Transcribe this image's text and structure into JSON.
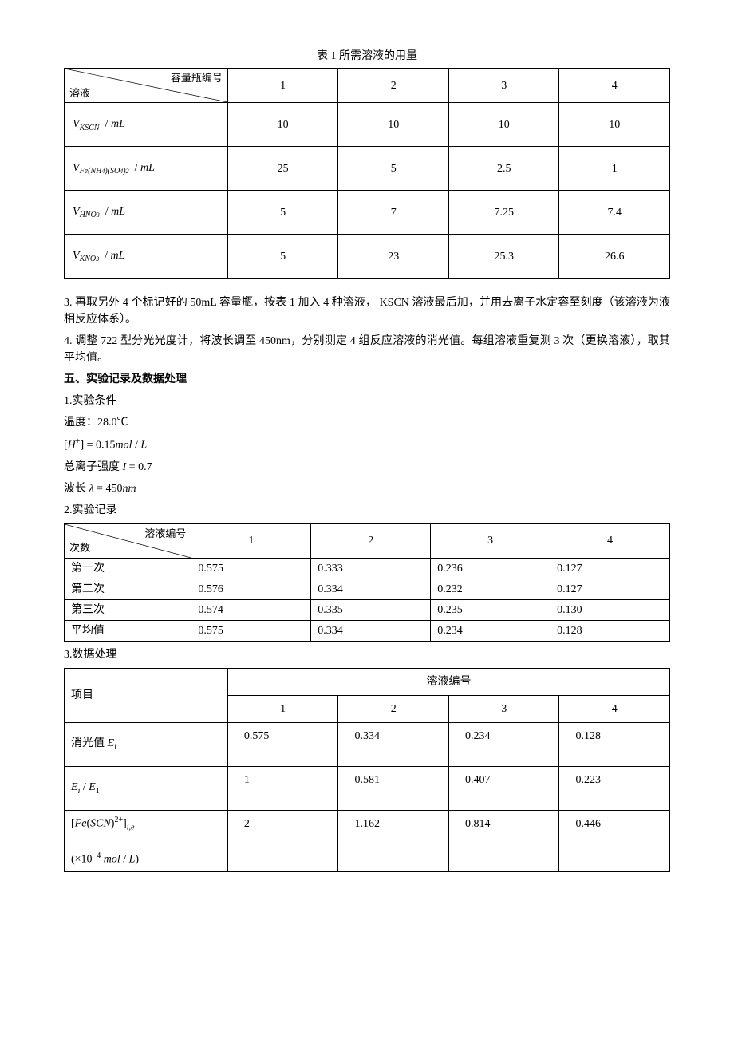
{
  "table1": {
    "title": "表 1 所需溶液的用量",
    "diag_top": "容量瓶编号",
    "diag_bottom": "溶液",
    "cols": [
      "1",
      "2",
      "3",
      "4"
    ],
    "rows": [
      {
        "label_html": "<span class='ital'>V</span><span class='sub ital'>KSCN</span>&nbsp;&nbsp;/ <span class='ital'>mL</span>",
        "vals": [
          "10",
          "10",
          "10",
          "10"
        ]
      },
      {
        "label_html": "<span class='ital'>V</span><span class='sub ital'>Fe(NH<span style='font-size:8px'>4</span>)(SO<span style='font-size:8px'>4</span>)<span style='font-size:8px'>2</span></span>&nbsp;&nbsp;/ <span class='ital'>mL</span>",
        "vals": [
          "25",
          "5",
          "2.5",
          "1"
        ]
      },
      {
        "label_html": "<span class='ital'>V</span><span class='sub ital'>HNO<span style='font-size:8px'>3</span></span>&nbsp;&nbsp;/ <span class='ital'>mL</span>",
        "vals": [
          "5",
          "7",
          "7.25",
          "7.4"
        ]
      },
      {
        "label_html": "<span class='ital'>V</span><span class='sub ital'>KNO<span style='font-size:8px'>3</span></span>&nbsp;&nbsp;/ <span class='ital'>mL</span>",
        "vals": [
          "5",
          "23",
          "25.3",
          "26.6"
        ]
      }
    ]
  },
  "para3": "3. 再取另外 4 个标记好的 50mL 容量瓶，按表 1 加入 4 种溶液， KSCN 溶液最后加，并用去离子水定容至刻度（该溶液为液相反应体系）。",
  "para4": "4. 调整 722 型分光光度计，将波长调至 450nm，分别测定 4 组反应溶液的消光值。每组溶液重复测 3 次（更换溶液），取其平均值。",
  "section5_heading": "五、实验记录及数据处理",
  "cond_heading": "1.实验条件",
  "cond_temp": "温度：28.0℃",
  "cond_H_html": "[<span class='ital'>H</span><span class='sup'>+</span>] = 0.15<span class='ital'>mol</span> / <span class='ital'>L</span>",
  "cond_I_html": "总离子强度 <span class='ital'>I</span> = 0.7",
  "cond_lambda_html": "波长 <span class='ital'>λ</span> = 450<span class='ital'>nm</span>",
  "record_heading": "2.实验记录",
  "table2": {
    "diag_top": "溶液编号",
    "diag_bottom": "次数",
    "cols": [
      "1",
      "2",
      "3",
      "4"
    ],
    "rows": [
      {
        "label": "第一次",
        "vals": [
          "0.575",
          "0.333",
          "0.236",
          "0.127"
        ]
      },
      {
        "label": "第二次",
        "vals": [
          "0.576",
          "0.334",
          "0.232",
          "0.127"
        ]
      },
      {
        "label": "第三次",
        "vals": [
          "0.574",
          "0.335",
          "0.235",
          "0.130"
        ]
      },
      {
        "label": "平均值",
        "vals": [
          "0.575",
          "0.334",
          "0.234",
          "0.128"
        ]
      }
    ]
  },
  "data_heading": "3.数据处理",
  "table3": {
    "item_label": "项目",
    "group_label": "溶液编号",
    "cols": [
      "1",
      "2",
      "3",
      "4"
    ],
    "rows": [
      {
        "label_html": "消光值 <span class='ital'>E<span class='sub'>i</span></span>",
        "vals": [
          "0.575",
          "0.334",
          "0.234",
          "0.128"
        ]
      },
      {
        "label_html": "<span class='ital'>E<span class='sub'>i</span></span> / <span class='ital'>E</span><span class='sub'>1</span>",
        "vals": [
          "1",
          "0.581",
          "0.407",
          "0.223"
        ]
      },
      {
        "label_html": "[<span class='ital'>Fe</span>(<span class='ital'>SCN</span>)<span class='sup'>2+</span>]<span class='sub ital'>i,e</span><br><br>(×10<span class='sup'>−4</span> <span class='ital'>mol</span> / <span class='ital'>L</span>)",
        "vals": [
          "2",
          "1.162",
          "0.814",
          "0.446"
        ],
        "tall": true
      }
    ]
  }
}
